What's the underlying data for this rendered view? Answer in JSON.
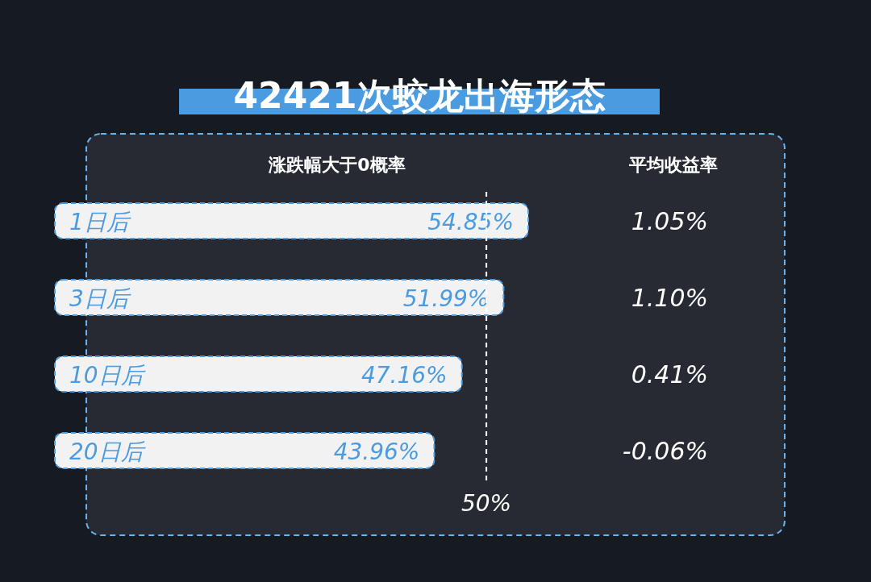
{
  "chart_data": {
    "type": "bar",
    "orientation": "horizontal",
    "title": "42421次蛟龙出海形态",
    "xlabel": "涨跌幅大于0概率",
    "categories": [
      "1日后",
      "3日后",
      "10日后",
      "20日后"
    ],
    "values": [
      54.85,
      51.99,
      47.16,
      43.96
    ],
    "value_labels": [
      "54.85%",
      "51.99%",
      "47.16%",
      "43.96%"
    ],
    "color": "#f2f2f2",
    "ref_lines": [
      {
        "axis": "x",
        "value": 50,
        "label": "50%",
        "color": "#ffffff",
        "line_style": "dashed"
      }
    ],
    "annotations": [
      "平均收益率",
      "1.05%",
      "1.10%",
      "0.41%",
      "-0.06%"
    ]
  }
}
